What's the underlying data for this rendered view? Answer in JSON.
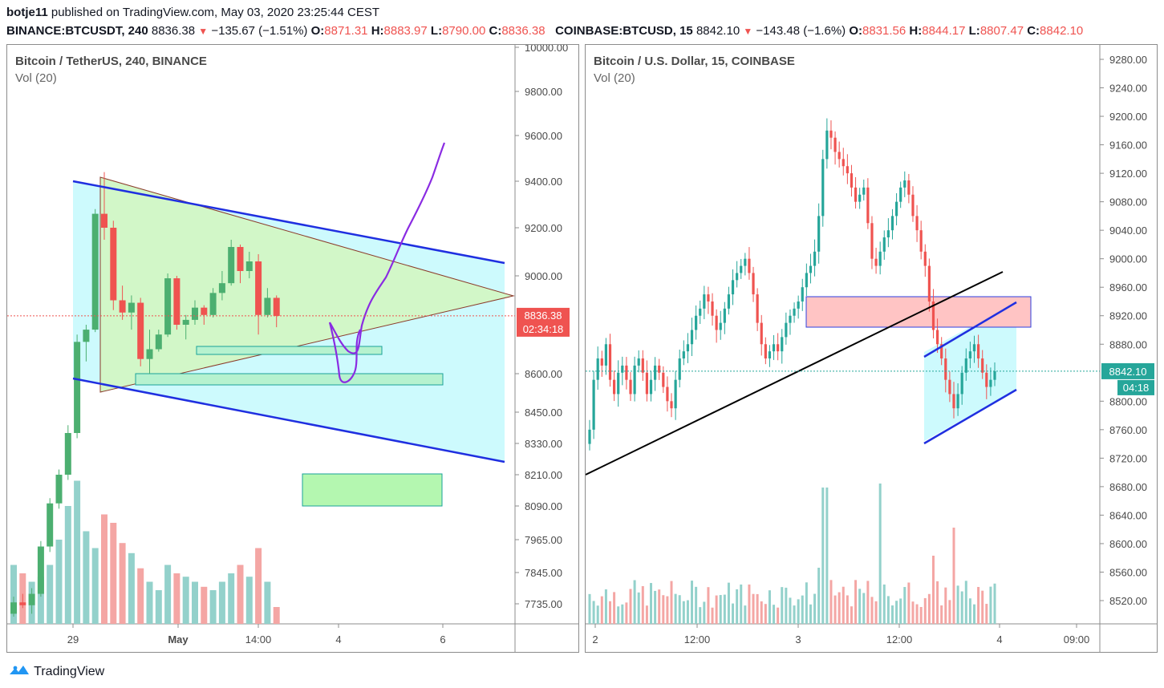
{
  "header": {
    "publisher": "botje11",
    "published_text": "published on TradingView.com, May 03, 2020 23:25:44 CEST",
    "left_quote": {
      "symbol": "BINANCE:BTCUSDT, 240",
      "last": "8836.38",
      "change": "−135.67 (−1.51%)",
      "o_label": "O:",
      "o": "8871.31",
      "h_label": "H:",
      "h": "8883.97",
      "l_label": "L:",
      "l": "8790.00",
      "c_label": "C:",
      "c": "8836.38"
    },
    "right_quote": {
      "symbol": "COINBASE:BTCUSD, 15",
      "last": "8842.10",
      "change": "−143.48 (−1.6%)",
      "o_label": "O:",
      "o": "8831.56",
      "h_label": "H:",
      "h": "8844.17",
      "l_label": "L:",
      "l": "8807.47",
      "c_label": "C:",
      "c": "8842.10"
    }
  },
  "colors": {
    "up": "#26a69a",
    "up_candle": "#4caf70",
    "down": "#ef5350",
    "vol_up": "#93d1cb",
    "vol_down": "#f4a6a4",
    "channel_fill": "#cdfafd",
    "triangle_fill": "#d2f7c8",
    "trend_blue": "#1f2fe0",
    "path_purple": "#8a2be2"
  },
  "brand": {
    "name": "TradingView",
    "icon": "tradingview-logo-icon"
  },
  "chart_data": [
    {
      "type": "candlestick",
      "title": "Bitcoin / TetherUS, 240, BINANCE",
      "indicator": "Vol (20)",
      "y_ticks": [
        "10000.00",
        "9800.00",
        "9600.00",
        "9400.00",
        "9200.00",
        "9000.00",
        "8600.00",
        "8450.00",
        "8330.00",
        "8210.00",
        "8090.00",
        "7965.00",
        "7845.00",
        "7735.00"
      ],
      "x_ticks": [
        "29",
        "May",
        "14:00",
        "4",
        "6"
      ],
      "last_price_label": "8836.38",
      "countdown_label": "02:34:18",
      "candles_ohlc": [
        [
          7700,
          7760,
          7690,
          7740
        ],
        [
          7740,
          7770,
          7720,
          7730
        ],
        [
          7730,
          7790,
          7700,
          7770
        ],
        [
          7770,
          7960,
          7760,
          7940
        ],
        [
          7940,
          8120,
          7920,
          8100
        ],
        [
          8100,
          8230,
          8080,
          8210
        ],
        [
          8210,
          8400,
          8190,
          8370
        ],
        [
          8370,
          8760,
          8350,
          8730
        ],
        [
          8730,
          8800,
          8650,
          8780
        ],
        [
          8780,
          9280,
          8770,
          9260
        ],
        [
          9260,
          9440,
          9150,
          9200
        ],
        [
          9200,
          9230,
          8860,
          8900
        ],
        [
          8900,
          8960,
          8820,
          8850
        ],
        [
          8850,
          8920,
          8780,
          8890
        ],
        [
          8890,
          8910,
          8630,
          8660
        ],
        [
          8660,
          8780,
          8600,
          8700
        ],
        [
          8700,
          8780,
          8690,
          8760
        ],
        [
          8760,
          9010,
          8750,
          8990
        ],
        [
          8990,
          9000,
          8780,
          8800
        ],
        [
          8800,
          8840,
          8740,
          8820
        ],
        [
          8820,
          8900,
          8800,
          8870
        ],
        [
          8870,
          8880,
          8800,
          8840
        ],
        [
          8840,
          8950,
          8830,
          8930
        ],
        [
          8930,
          9020,
          8900,
          8970
        ],
        [
          8970,
          9150,
          8960,
          9120
        ],
        [
          9120,
          9130,
          8970,
          9020
        ],
        [
          9020,
          9100,
          8990,
          9060
        ],
        [
          9060,
          9090,
          8760,
          8840
        ],
        [
          8840,
          8950,
          8830,
          8910
        ],
        [
          8910,
          8920,
          8790,
          8836
        ]
      ],
      "volume_relative": [
        0.35,
        0.3,
        0.25,
        0.28,
        0.35,
        0.5,
        0.7,
        0.85,
        0.55,
        0.45,
        0.65,
        0.6,
        0.48,
        0.42,
        0.33,
        0.25,
        0.2,
        0.35,
        0.3,
        0.28,
        0.25,
        0.22,
        0.2,
        0.25,
        0.3,
        0.35,
        0.28,
        0.45,
        0.25,
        0.1
      ]
    },
    {
      "type": "candlestick",
      "title": "Bitcoin / U.S. Dollar, 15, COINBASE",
      "indicator": "Vol (20)",
      "y_ticks": [
        "9280.00",
        "9240.00",
        "9200.00",
        "9160.00",
        "9120.00",
        "9080.00",
        "9040.00",
        "9000.00",
        "8960.00",
        "8920.00",
        "8880.00",
        "8800.00",
        "8760.00",
        "8720.00",
        "8680.00",
        "8640.00",
        "8600.00",
        "8560.00",
        "8520.00"
      ],
      "x_ticks": [
        "2",
        "12:00",
        "3",
        "12:00",
        "4",
        "09:00"
      ],
      "last_price_label": "8842.10",
      "countdown_label": "04:18",
      "close_path": [
        8760,
        8830,
        8860,
        8850,
        8880,
        8830,
        8810,
        8840,
        8850,
        8830,
        8810,
        8850,
        8860,
        8840,
        8810,
        8830,
        8850,
        8840,
        8820,
        8800,
        8790,
        8830,
        8860,
        8870,
        8880,
        8900,
        8920,
        8930,
        8950,
        8940,
        8920,
        8900,
        8910,
        8930,
        8950,
        8970,
        8980,
        8990,
        9000,
        8980,
        8950,
        8910,
        8880,
        8860,
        8870,
        8880,
        8870,
        8890,
        8910,
        8920,
        8930,
        8940,
        8960,
        8980,
        8990,
        9010,
        9060,
        9140,
        9180,
        9170,
        9150,
        9140,
        9130,
        9120,
        9100,
        9080,
        9090,
        9100,
        9050,
        9000,
        8990,
        9010,
        9030,
        9040,
        9060,
        9080,
        9100,
        9110,
        9090,
        9060,
        9040,
        9010,
        8990,
        8940,
        8900,
        8880,
        8860,
        8830,
        8810,
        8790,
        8810,
        8840,
        8860,
        8870,
        8880,
        8860,
        8840,
        8820,
        8830,
        8842
      ]
    }
  ]
}
